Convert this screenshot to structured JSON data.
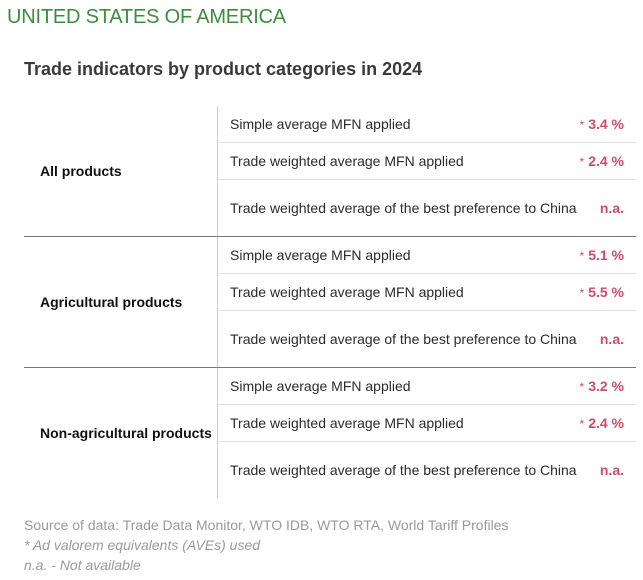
{
  "country": "UNITED STATES OF AMERICA",
  "heading": "Trade indicators by product categories in 2024",
  "star": "*",
  "groups": [
    {
      "category": "All products",
      "rows": [
        {
          "indicator": "Simple average MFN applied",
          "value": "3.4 %",
          "starred": true
        },
        {
          "indicator": "Trade weighted average MFN applied",
          "value": "2.4 %",
          "starred": true
        },
        {
          "indicator": "Trade weighted average of the best preference to China",
          "value": "n.a.",
          "starred": false
        }
      ]
    },
    {
      "category": "Agricultural products",
      "rows": [
        {
          "indicator": "Simple average MFN applied",
          "value": "5.1 %",
          "starred": true
        },
        {
          "indicator": "Trade weighted average MFN applied",
          "value": "5.5 %",
          "starred": true
        },
        {
          "indicator": "Trade weighted average of the best preference to China",
          "value": "n.a.",
          "starred": false
        }
      ]
    },
    {
      "category": "Non-agricultural products",
      "rows": [
        {
          "indicator": "Simple average MFN applied",
          "value": "3.2 %",
          "starred": true
        },
        {
          "indicator": "Trade weighted average MFN applied",
          "value": "2.4 %",
          "starred": true
        },
        {
          "indicator": "Trade weighted average of the best preference to China",
          "value": "n.a.",
          "starred": false
        }
      ]
    }
  ],
  "notes": {
    "source": "Source of data: Trade Data Monitor, WTO IDB, WTO RTA, World Tariff Profiles",
    "ave": "* Ad valorem equivalents (AVEs) used",
    "na": "n.a. - Not available"
  }
}
